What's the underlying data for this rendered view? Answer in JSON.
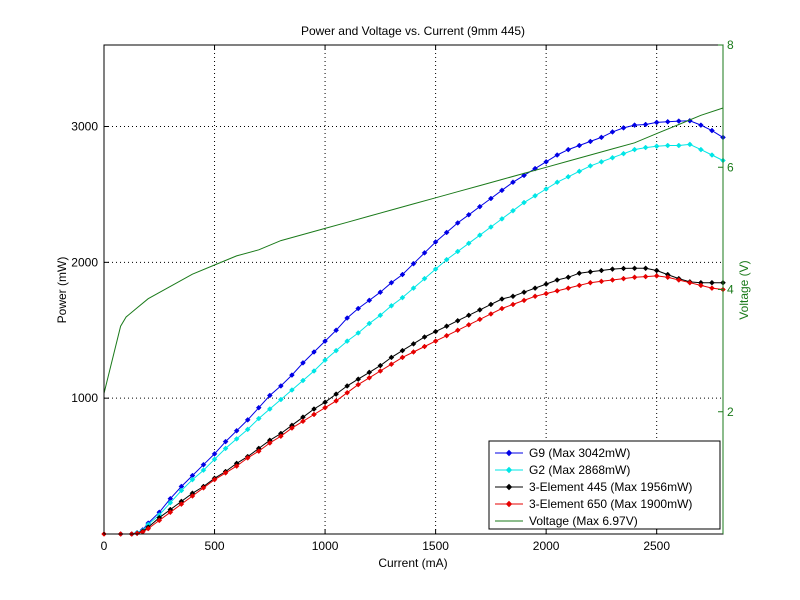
{
  "chart_data": {
    "type": "line",
    "title": "Power and Voltage vs. Current (9mm 445)",
    "xlabel": "Current (mA)",
    "ylabel": "Power (mW)",
    "y2label": "Voltage (V)",
    "xlim": [
      0,
      2800
    ],
    "ylim": [
      0,
      3600
    ],
    "y2lim": [
      0,
      8
    ],
    "xticks": [
      "0",
      "500",
      "1000",
      "1500",
      "2000",
      "2500"
    ],
    "yticks": [
      "1000",
      "2000",
      "3000"
    ],
    "y2ticks": [
      "2",
      "4",
      "6",
      "8"
    ],
    "grid": true,
    "legend_position": "bottom-right",
    "colors": {
      "axis_right": "#1a7a1a"
    },
    "series": [
      {
        "name": "G9 (Max 3042mW)",
        "axis": "left",
        "color": "#0000e6",
        "marker": "diamond",
        "x": [
          0,
          75,
          125,
          150,
          175,
          200,
          250,
          300,
          350,
          400,
          450,
          500,
          550,
          600,
          650,
          700,
          750,
          800,
          850,
          900,
          950,
          1000,
          1050,
          1100,
          1150,
          1200,
          1250,
          1300,
          1350,
          1400,
          1450,
          1500,
          1550,
          1600,
          1650,
          1700,
          1750,
          1800,
          1850,
          1900,
          1950,
          2000,
          2050,
          2100,
          2150,
          2200,
          2250,
          2300,
          2350,
          2400,
          2450,
          2500,
          2550,
          2600,
          2650,
          2700,
          2750,
          2800
        ],
        "y": [
          0,
          0,
          0,
          10,
          30,
          80,
          160,
          260,
          350,
          430,
          510,
          590,
          680,
          760,
          840,
          930,
          1020,
          1090,
          1170,
          1260,
          1340,
          1420,
          1500,
          1590,
          1660,
          1720,
          1780,
          1850,
          1910,
          1990,
          2070,
          2150,
          2220,
          2290,
          2350,
          2410,
          2470,
          2530,
          2590,
          2640,
          2690,
          2740,
          2790,
          2830,
          2860,
          2890,
          2920,
          2960,
          2990,
          3010,
          3015,
          3030,
          3035,
          3040,
          3042,
          3010,
          2970,
          2920
        ]
      },
      {
        "name": "G2 (Max 2868mW)",
        "axis": "left",
        "color": "#00e6e6",
        "marker": "diamond",
        "x": [
          0,
          75,
          125,
          150,
          175,
          200,
          250,
          300,
          350,
          400,
          450,
          500,
          550,
          600,
          650,
          700,
          750,
          800,
          850,
          900,
          950,
          1000,
          1050,
          1100,
          1150,
          1200,
          1250,
          1300,
          1350,
          1400,
          1450,
          1500,
          1550,
          1600,
          1650,
          1700,
          1750,
          1800,
          1850,
          1900,
          1950,
          2000,
          2050,
          2100,
          2150,
          2200,
          2250,
          2300,
          2350,
          2400,
          2450,
          2500,
          2550,
          2600,
          2650,
          2700,
          2750,
          2800
        ],
        "y": [
          0,
          0,
          0,
          10,
          25,
          70,
          140,
          230,
          320,
          400,
          470,
          550,
          630,
          700,
          770,
          850,
          920,
          990,
          1060,
          1130,
          1200,
          1280,
          1350,
          1420,
          1480,
          1550,
          1610,
          1680,
          1740,
          1810,
          1880,
          1950,
          2020,
          2080,
          2140,
          2200,
          2260,
          2320,
          2380,
          2440,
          2490,
          2540,
          2590,
          2630,
          2670,
          2710,
          2740,
          2770,
          2800,
          2830,
          2845,
          2855,
          2860,
          2860,
          2868,
          2830,
          2790,
          2750
        ]
      },
      {
        "name": "3-Element 445 (Max 1956mW)",
        "axis": "left",
        "color": "#000000",
        "marker": "diamond",
        "x": [
          0,
          75,
          125,
          150,
          175,
          200,
          250,
          300,
          350,
          400,
          450,
          500,
          550,
          600,
          650,
          700,
          750,
          800,
          850,
          900,
          950,
          1000,
          1050,
          1100,
          1150,
          1200,
          1250,
          1300,
          1350,
          1400,
          1450,
          1500,
          1550,
          1600,
          1650,
          1700,
          1750,
          1800,
          1850,
          1900,
          1950,
          2000,
          2050,
          2100,
          2150,
          2200,
          2250,
          2300,
          2350,
          2400,
          2450,
          2500,
          2550,
          2600,
          2650,
          2700,
          2750,
          2800
        ],
        "y": [
          0,
          0,
          0,
          5,
          20,
          50,
          120,
          180,
          240,
          300,
          350,
          410,
          460,
          520,
          570,
          630,
          690,
          740,
          800,
          860,
          920,
          970,
          1030,
          1090,
          1140,
          1190,
          1240,
          1300,
          1350,
          1400,
          1450,
          1490,
          1530,
          1570,
          1610,
          1650,
          1690,
          1730,
          1750,
          1780,
          1810,
          1840,
          1870,
          1890,
          1920,
          1930,
          1940,
          1950,
          1955,
          1956,
          1956,
          1940,
          1910,
          1880,
          1856,
          1850,
          1850,
          1850
        ]
      },
      {
        "name": "3-Element 650 (Max 1900mW)",
        "axis": "left",
        "color": "#e60000",
        "marker": "diamond",
        "x": [
          0,
          75,
          125,
          150,
          175,
          200,
          250,
          300,
          350,
          400,
          450,
          500,
          550,
          600,
          650,
          700,
          750,
          800,
          850,
          900,
          950,
          1000,
          1050,
          1100,
          1150,
          1200,
          1250,
          1300,
          1350,
          1400,
          1450,
          1500,
          1550,
          1600,
          1650,
          1700,
          1750,
          1800,
          1850,
          1900,
          1950,
          2000,
          2050,
          2100,
          2150,
          2200,
          2250,
          2300,
          2350,
          2400,
          2450,
          2500,
          2550,
          2600,
          2650,
          2700,
          2750,
          2800
        ],
        "y": [
          0,
          0,
          0,
          5,
          15,
          40,
          100,
          160,
          220,
          280,
          340,
          400,
          450,
          500,
          560,
          610,
          670,
          720,
          780,
          830,
          880,
          930,
          980,
          1040,
          1100,
          1150,
          1200,
          1250,
          1300,
          1340,
          1380,
          1420,
          1460,
          1500,
          1540,
          1580,
          1620,
          1660,
          1690,
          1720,
          1750,
          1770,
          1790,
          1810,
          1830,
          1850,
          1860,
          1870,
          1880,
          1890,
          1895,
          1900,
          1890,
          1870,
          1850,
          1830,
          1810,
          1800
        ]
      },
      {
        "name": "Voltage (Max 6.97V)",
        "axis": "right",
        "color": "#1a7a1a",
        "marker": "none",
        "x": [
          0,
          75,
          100,
          150,
          200,
          300,
          400,
          500,
          600,
          700,
          800,
          900,
          1000,
          1100,
          1200,
          1300,
          1400,
          1500,
          1600,
          1700,
          1800,
          1900,
          2000,
          2100,
          2200,
          2300,
          2400,
          2500,
          2600,
          2700,
          2800
        ],
        "y": [
          2.3,
          3.4,
          3.55,
          3.7,
          3.85,
          4.05,
          4.25,
          4.4,
          4.55,
          4.65,
          4.8,
          4.9,
          5.0,
          5.1,
          5.2,
          5.3,
          5.4,
          5.5,
          5.6,
          5.7,
          5.8,
          5.9,
          6.0,
          6.1,
          6.2,
          6.3,
          6.4,
          6.55,
          6.7,
          6.85,
          6.97
        ]
      }
    ]
  }
}
